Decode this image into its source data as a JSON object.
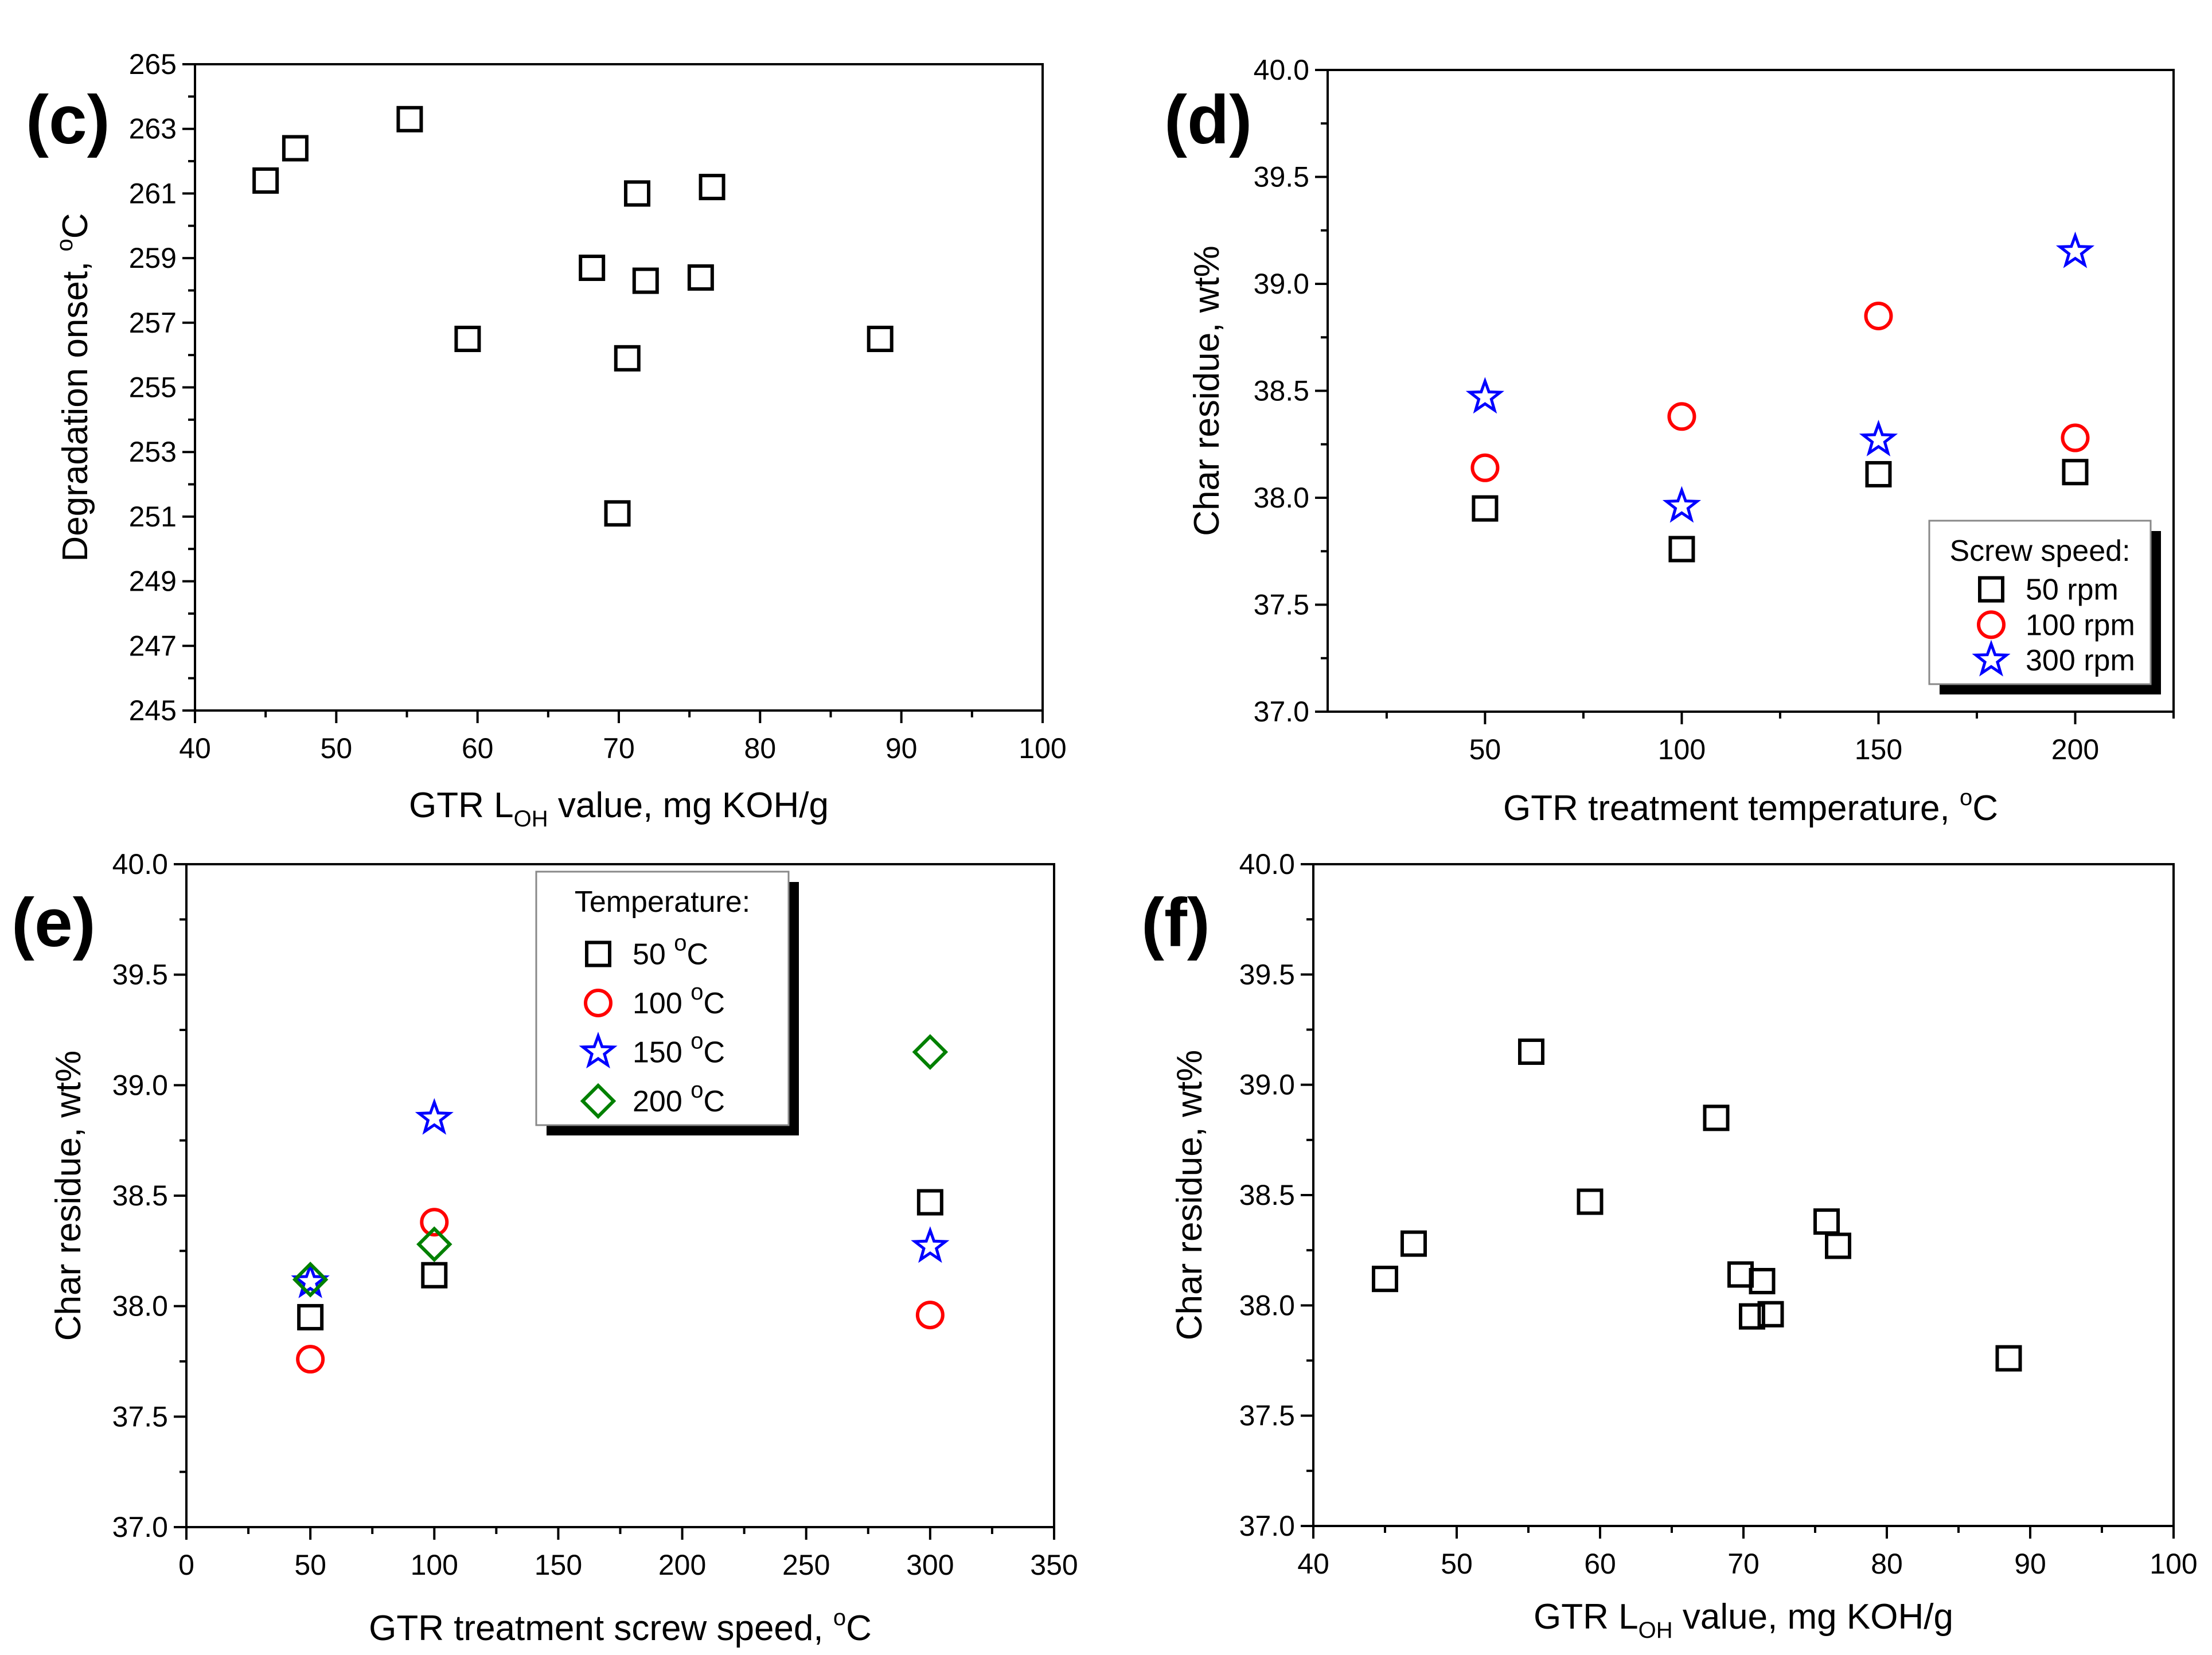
{
  "chart_data": [
    {
      "id": "c",
      "panel_label": "(c)",
      "type": "scatter",
      "xlabel": {
        "pre": "GTR L",
        "sub": "OH",
        "post": " value, mg KOH/g"
      },
      "ylabel": {
        "pre": "Degradation onset, ",
        "sup": "o",
        "post": "C"
      },
      "xlim": [
        40,
        100
      ],
      "ylim": [
        245,
        265
      ],
      "xticks": [
        "40",
        "50",
        "60",
        "70",
        "80",
        "90",
        "100"
      ],
      "yticks": [
        "245",
        "247",
        "249",
        "251",
        "253",
        "255",
        "257",
        "259",
        "261",
        "263",
        "265"
      ],
      "series": [
        {
          "name": "data",
          "marker": "square",
          "color": "#000000",
          "points": [
            [
              45.0,
              261.4
            ],
            [
              47.1,
              262.4
            ],
            [
              55.2,
              263.3
            ],
            [
              59.3,
              256.5
            ],
            [
              68.1,
              258.7
            ],
            [
              69.9,
              251.1
            ],
            [
              70.6,
              255.9
            ],
            [
              71.3,
              261.0
            ],
            [
              71.9,
              258.3
            ],
            [
              75.8,
              258.4
            ],
            [
              76.6,
              261.2
            ],
            [
              88.5,
              256.5
            ]
          ]
        }
      ]
    },
    {
      "id": "d",
      "panel_label": "(d)",
      "type": "scatter",
      "xlabel": {
        "pre": "GTR treatment temperature, ",
        "sup": "o",
        "post": "C"
      },
      "ylabel": {
        "pre": "Char residue, wt%",
        "sup": "",
        "post": ""
      },
      "xlim": [
        10,
        225
      ],
      "ylim": [
        37.0,
        40.0
      ],
      "xticks": [
        "50",
        "100",
        "150",
        "200"
      ],
      "yticks": [
        "37.0",
        "37.5",
        "38.0",
        "38.5",
        "39.0",
        "39.5",
        "40.0"
      ],
      "legend": {
        "title": "Screw speed:",
        "position": "bottom-right"
      },
      "series": [
        {
          "name": "50 rpm",
          "marker": "square",
          "color": "#000000",
          "points": [
            [
              50,
              37.95
            ],
            [
              100,
              37.76
            ],
            [
              150,
              38.11
            ],
            [
              200,
              38.12
            ]
          ]
        },
        {
          "name": "100 rpm",
          "marker": "circle",
          "color": "#ff0000",
          "points": [
            [
              50,
              38.14
            ],
            [
              100,
              38.38
            ],
            [
              150,
              38.85
            ],
            [
              200,
              38.28
            ]
          ]
        },
        {
          "name": "300 rpm",
          "marker": "star",
          "color": "#0000ff",
          "points": [
            [
              50,
              38.47
            ],
            [
              100,
              37.96
            ],
            [
              150,
              38.27
            ],
            [
              200,
              39.15
            ]
          ]
        }
      ]
    },
    {
      "id": "e",
      "panel_label": "(e)",
      "type": "scatter",
      "xlabel": {
        "pre": "GTR treatment screw speed, ",
        "sup": "o",
        "post": "C"
      },
      "ylabel": {
        "pre": "Char residue, wt%",
        "sup": "",
        "post": ""
      },
      "xlim": [
        0,
        350
      ],
      "ylim": [
        37.0,
        40.0
      ],
      "xticks": [
        "0",
        "50",
        "100",
        "150",
        "200",
        "250",
        "300",
        "350"
      ],
      "yticks": [
        "37.0",
        "37.5",
        "38.0",
        "38.5",
        "39.0",
        "39.5",
        "40.0"
      ],
      "legend": {
        "title": "Temperature:",
        "position": "top-center"
      },
      "series": [
        {
          "name": "50 ",
          "unit_sup": "o",
          "unit": "C",
          "marker": "square",
          "color": "#000000",
          "points": [
            [
              50,
              37.95
            ],
            [
              100,
              38.14
            ],
            [
              300,
              38.47
            ]
          ]
        },
        {
          "name": "100 ",
          "unit_sup": "o",
          "unit": "C",
          "marker": "circle",
          "color": "#ff0000",
          "points": [
            [
              50,
              37.76
            ],
            [
              100,
              38.38
            ],
            [
              300,
              37.96
            ]
          ]
        },
        {
          "name": "150 ",
          "unit_sup": "o",
          "unit": "C",
          "marker": "star",
          "color": "#0000ff",
          "points": [
            [
              50,
              38.11
            ],
            [
              100,
              38.85
            ],
            [
              300,
              38.27
            ]
          ]
        },
        {
          "name": "200 ",
          "unit_sup": "o",
          "unit": "C",
          "marker": "diamond",
          "color": "#008000",
          "points": [
            [
              50,
              38.12
            ],
            [
              100,
              38.28
            ],
            [
              300,
              39.15
            ]
          ]
        }
      ]
    },
    {
      "id": "f",
      "panel_label": "(f)",
      "type": "scatter",
      "xlabel": {
        "pre": "GTR L",
        "sub": "OH",
        "post": " value, mg KOH/g"
      },
      "ylabel": {
        "pre": "Char residue, wt%",
        "sup": "",
        "post": ""
      },
      "xlim": [
        40,
        100
      ],
      "ylim": [
        37.0,
        40.0
      ],
      "xticks": [
        "40",
        "50",
        "60",
        "70",
        "80",
        "90",
        "100"
      ],
      "yticks": [
        "37.0",
        "37.5",
        "38.0",
        "38.5",
        "39.0",
        "39.5",
        "40.0"
      ],
      "series": [
        {
          "name": "data",
          "marker": "square",
          "color": "#000000",
          "points": [
            [
              45.0,
              38.12
            ],
            [
              47.0,
              38.28
            ],
            [
              55.2,
              39.15
            ],
            [
              59.3,
              38.47
            ],
            [
              68.1,
              38.85
            ],
            [
              69.8,
              38.14
            ],
            [
              70.6,
              37.95
            ],
            [
              71.3,
              38.11
            ],
            [
              71.9,
              37.96
            ],
            [
              75.8,
              38.38
            ],
            [
              76.6,
              38.27
            ],
            [
              88.5,
              37.76
            ]
          ]
        }
      ]
    }
  ]
}
